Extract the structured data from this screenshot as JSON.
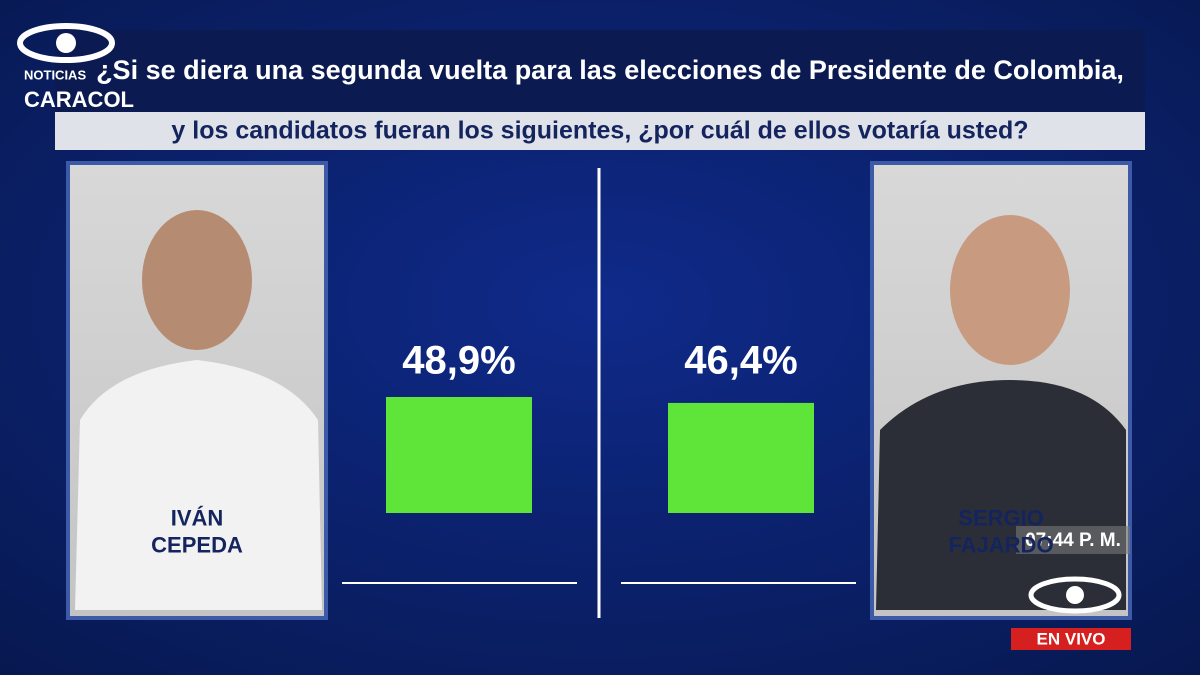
{
  "chart_data": {
    "type": "bar",
    "title": [
      "¿Si se diera una segunda vuelta para las elecciones de Presidente de Colombia,",
      "y los candidatos fueran los siguientes, ¿por cuál de ellos votaría usted?"
    ],
    "categories": [
      "IVÁN\nCEPEDA",
      "SERGIO\nFAJARDO"
    ],
    "values": [
      48.9,
      46.4
    ],
    "value_labels": [
      "48,9%",
      "46,4%"
    ],
    "color": "#5fe43a"
  },
  "broadcast": {
    "logo": [
      "NOTICIAS",
      "CARACOL"
    ],
    "time": "07:44 P. M.",
    "live": "EN VIVO"
  }
}
